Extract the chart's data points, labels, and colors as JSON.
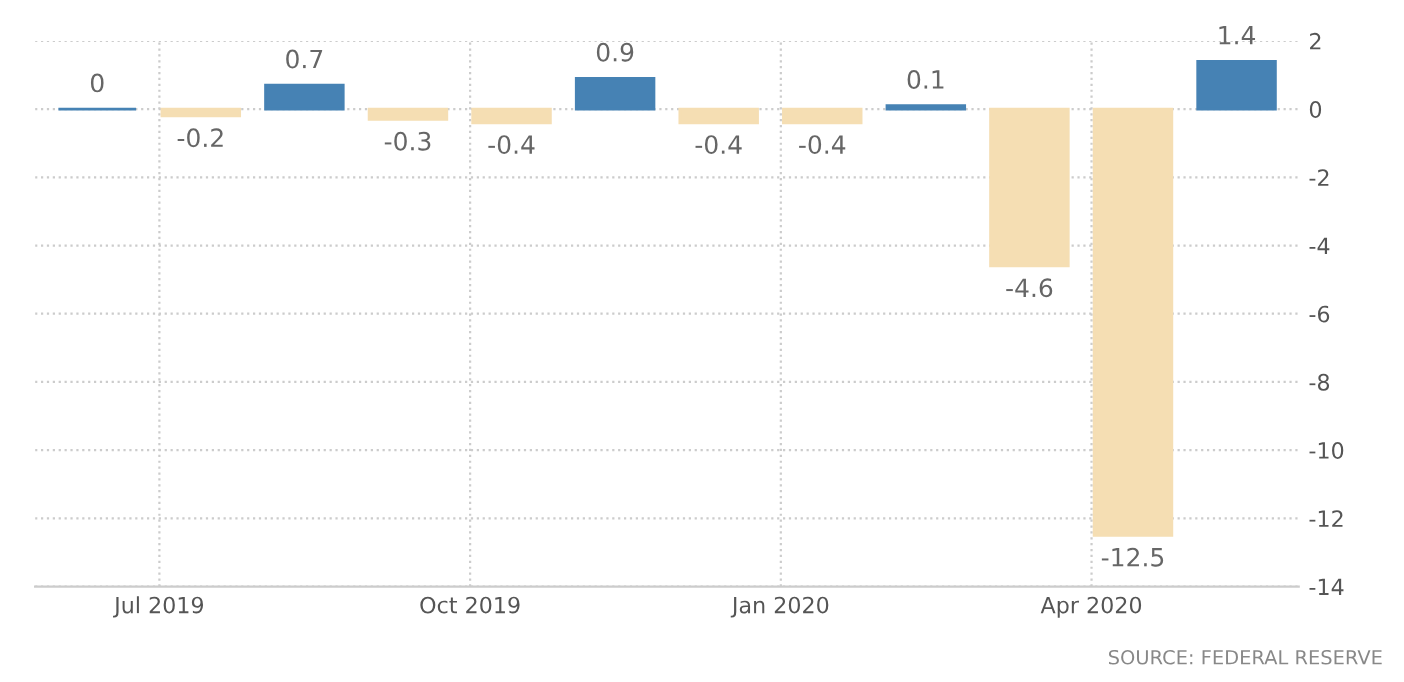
{
  "chart_data": {
    "type": "bar",
    "categories": [
      null,
      "Jul 2019",
      null,
      null,
      "Oct 2019",
      null,
      null,
      "Jan 2020",
      null,
      null,
      "Apr 2020",
      null
    ],
    "values": [
      0,
      -0.2,
      0.7,
      -0.3,
      -0.4,
      0.9,
      -0.4,
      -0.4,
      0.1,
      -4.6,
      -12.5,
      1.4
    ],
    "colors": [
      "#4682b4",
      "#f5deb3",
      "#4682b4",
      "#f5deb3",
      "#f5deb3",
      "#4682b4",
      "#f5deb3",
      "#f5deb3",
      "#4682b4",
      "#f5deb3",
      "#f5deb3",
      "#4682b4"
    ],
    "ylim": [
      -14,
      2
    ],
    "yticks": [
      2,
      0,
      -2,
      -4,
      -6,
      -8,
      -10,
      -12,
      -14
    ],
    "grid": true,
    "data_labels": true,
    "annotations": [
      "SOURCE: FEDERAL RESERVE"
    ]
  }
}
